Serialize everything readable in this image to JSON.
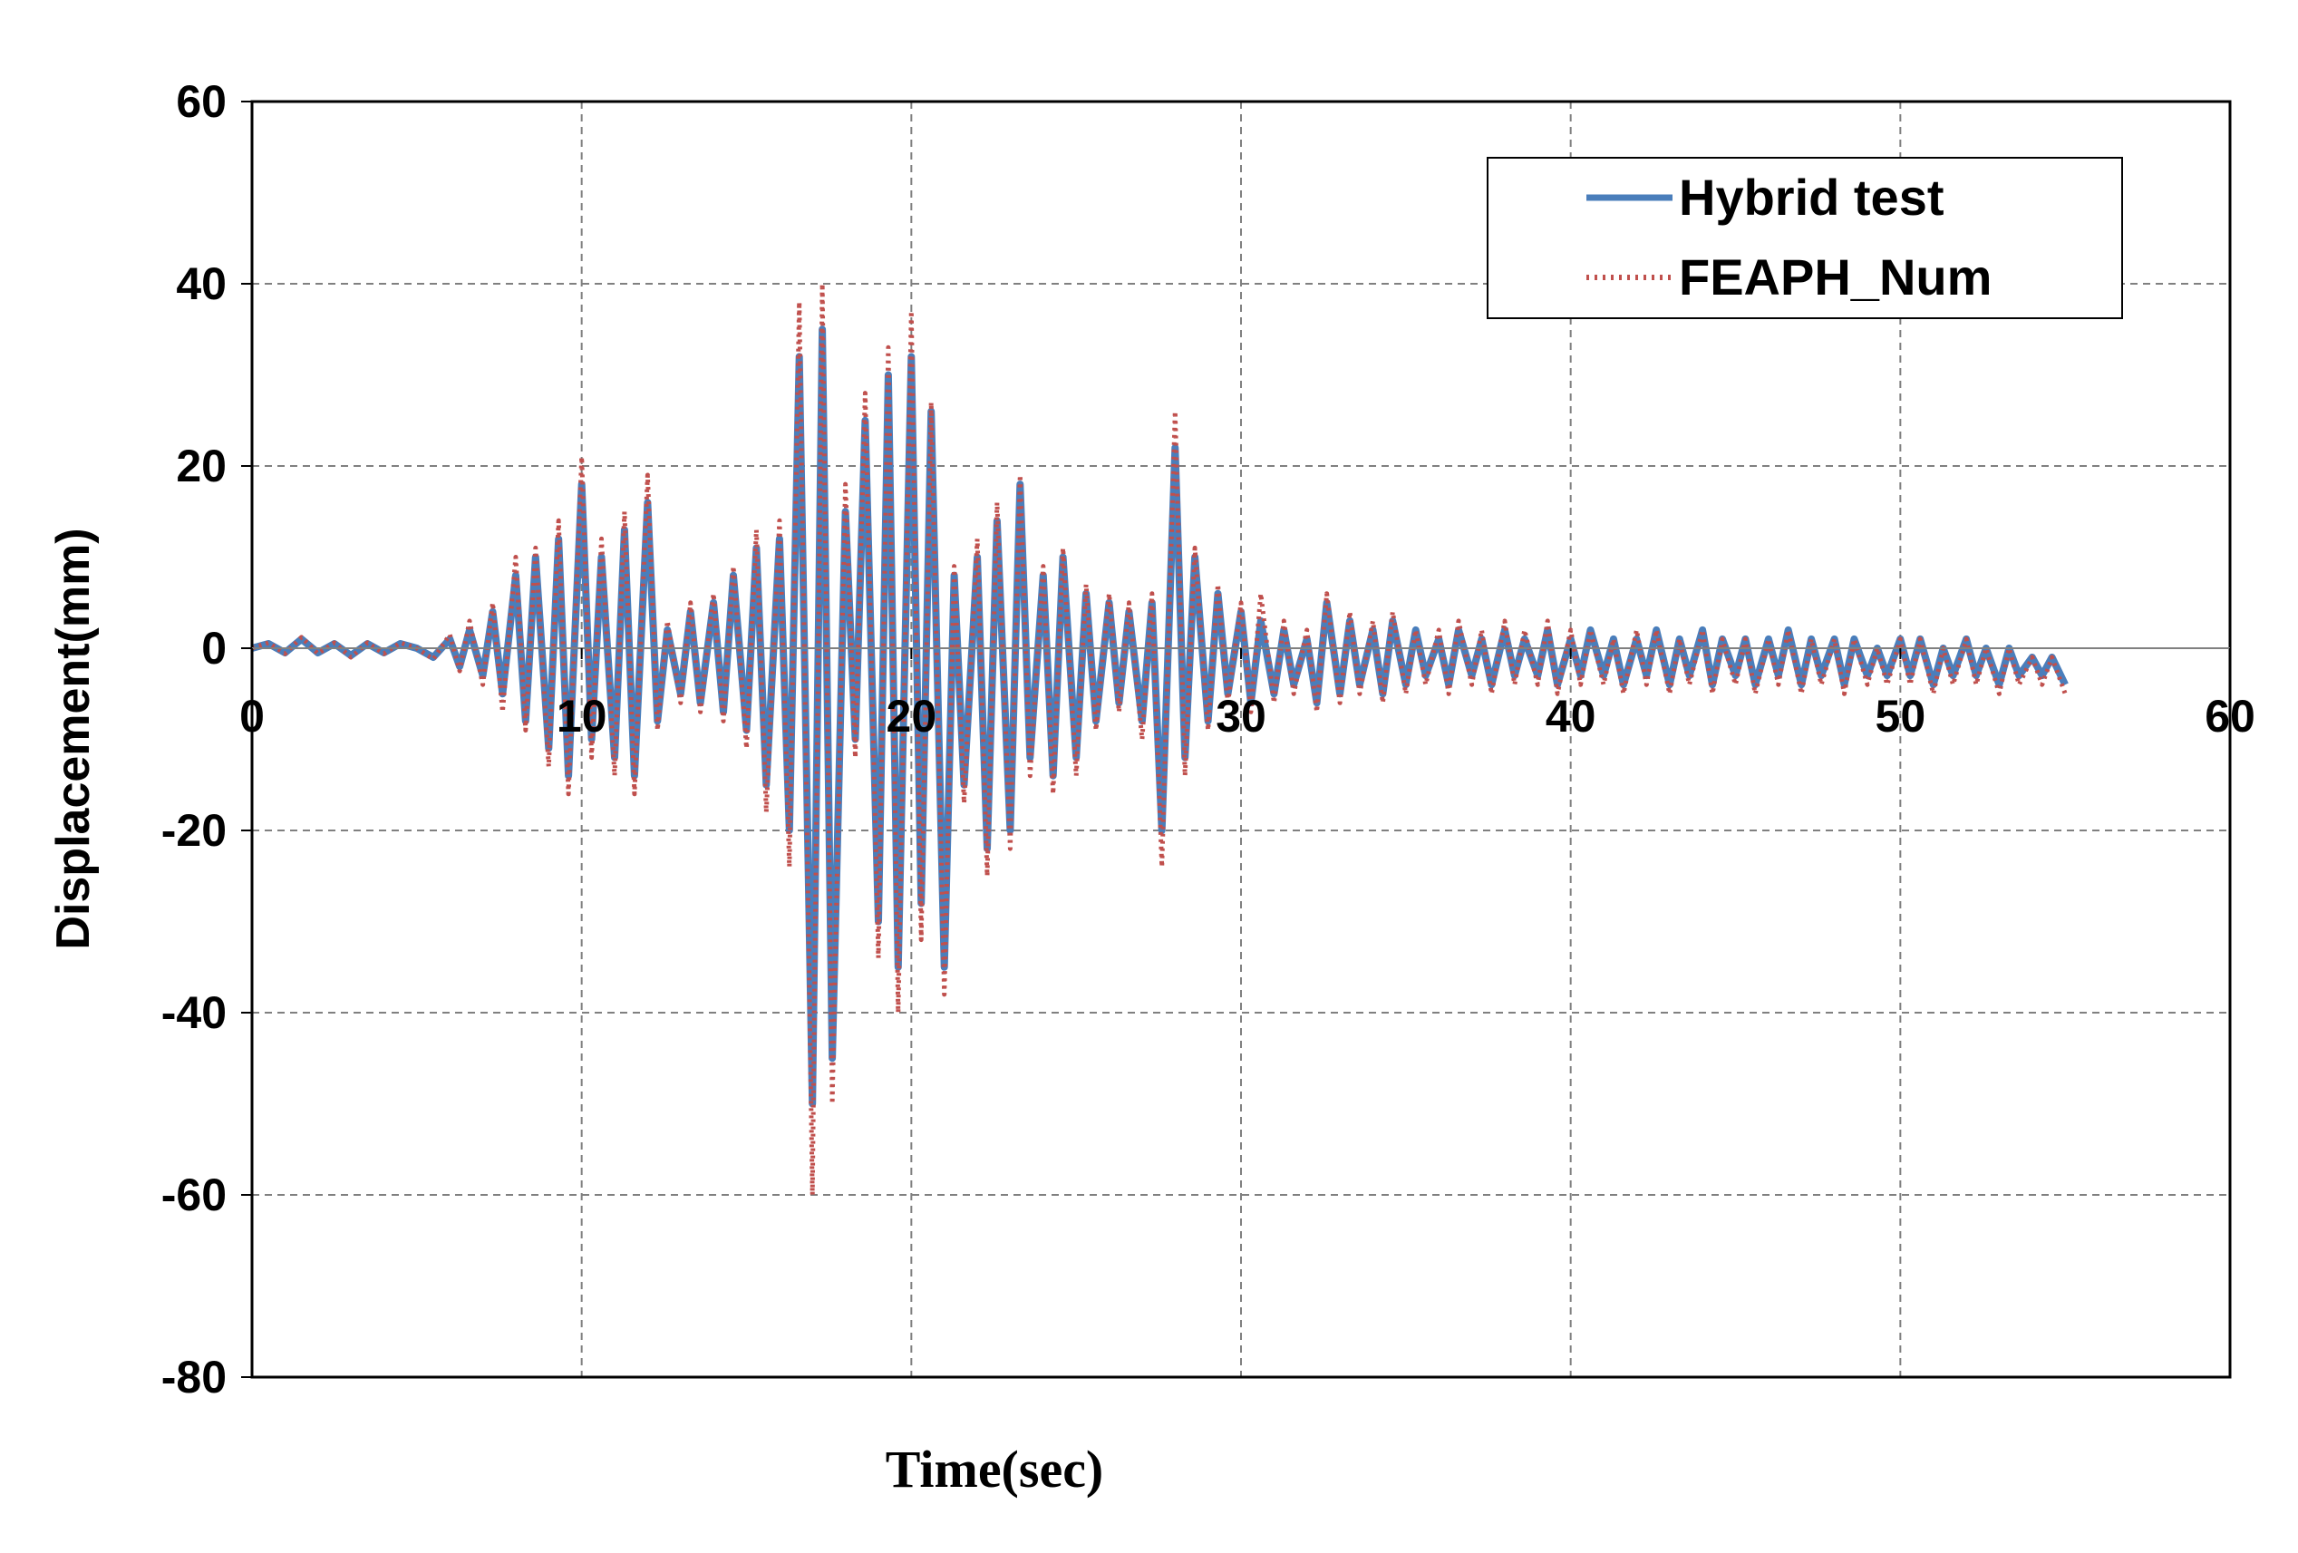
{
  "chart_data": {
    "type": "line",
    "title": "",
    "xlabel": "Time(sec)",
    "ylabel": "Displacement(mm)",
    "xlim": [
      0,
      60
    ],
    "ylim": [
      -80,
      60
    ],
    "x_ticks": [
      0,
      10,
      20,
      30,
      40,
      50,
      60
    ],
    "y_ticks": [
      -80,
      -60,
      -40,
      -20,
      0,
      20,
      40,
      60
    ],
    "grid": true,
    "legend_position": "top-right",
    "series": [
      {
        "name": "Hybrid test",
        "color": "#4a7ebb",
        "style": "solid",
        "x": [
          0,
          0.5,
          1,
          1.5,
          2,
          2.5,
          3,
          3.5,
          4,
          4.5,
          5,
          5.5,
          6,
          6.3,
          6.6,
          7,
          7.3,
          7.6,
          8,
          8.3,
          8.6,
          9,
          9.3,
          9.6,
          10,
          10.3,
          10.6,
          11,
          11.3,
          11.6,
          12,
          12.3,
          12.6,
          13,
          13.3,
          13.6,
          14,
          14.3,
          14.6,
          15,
          15.3,
          15.6,
          16,
          16.3,
          16.6,
          17,
          17.3,
          17.6,
          18,
          18.3,
          18.6,
          19,
          19.3,
          19.6,
          20,
          20.3,
          20.6,
          21,
          21.3,
          21.6,
          22,
          22.3,
          22.6,
          23,
          23.3,
          23.6,
          24,
          24.3,
          24.6,
          25,
          25.3,
          25.6,
          26,
          26.3,
          26.6,
          27,
          27.3,
          27.6,
          28,
          28.3,
          28.6,
          29,
          29.3,
          29.6,
          30,
          30.3,
          30.6,
          31,
          31.3,
          31.6,
          32,
          32.3,
          32.6,
          33,
          33.3,
          33.6,
          34,
          34.3,
          34.6,
          35,
          35.3,
          35.6,
          36,
          36.3,
          36.6,
          37,
          37.3,
          37.6,
          38,
          38.3,
          38.6,
          39,
          39.3,
          39.6,
          40,
          40.3,
          40.6,
          41,
          41.3,
          41.6,
          42,
          42.3,
          42.6,
          43,
          43.3,
          43.6,
          44,
          44.3,
          44.6,
          45,
          45.3,
          45.6,
          46,
          46.3,
          46.6,
          47,
          47.3,
          47.6,
          48,
          48.3,
          48.6,
          49,
          49.3,
          49.6,
          50,
          50.3,
          50.6,
          51,
          51.3,
          51.6,
          52,
          52.3,
          52.6,
          53,
          53.3,
          53.6,
          54,
          54.3,
          54.6,
          55
        ],
        "y": [
          0,
          0.5,
          -0.5,
          1,
          -0.5,
          0.5,
          -0.8,
          0.5,
          -0.5,
          0.5,
          0,
          -1,
          1,
          -2,
          2,
          -3,
          4,
          -5,
          8,
          -8,
          10,
          -11,
          12,
          -14,
          18,
          -10,
          10,
          -12,
          13,
          -14,
          16,
          -8,
          2,
          -5,
          4,
          -6,
          5,
          -7,
          8,
          -9,
          11,
          -15,
          12,
          -20,
          32,
          -50,
          35,
          -45,
          15,
          -10,
          25,
          -30,
          30,
          -35,
          32,
          -28,
          26,
          -35,
          8,
          -15,
          10,
          -22,
          14,
          -20,
          18,
          -12,
          8,
          -14,
          10,
          -12,
          6,
          -8,
          5,
          -6,
          4,
          -8,
          5,
          -20,
          22,
          -12,
          10,
          -8,
          6,
          -5,
          4,
          -6,
          3,
          -5,
          2,
          -4,
          1,
          -6,
          5,
          -5,
          3,
          -4,
          2,
          -5,
          3,
          -4,
          2,
          -3,
          1,
          -4,
          2,
          -3,
          1,
          -4,
          2,
          -3,
          1,
          -3,
          2,
          -4,
          1,
          -3,
          2,
          -3,
          1,
          -4,
          1,
          -3,
          2,
          -4,
          1,
          -3,
          2,
          -4,
          1,
          -3,
          1,
          -4,
          1,
          -3,
          2,
          -4,
          1,
          -3,
          1,
          -4,
          1,
          -3,
          0,
          -3,
          1,
          -3,
          1,
          -4,
          0,
          -3,
          1,
          -3,
          0,
          -4,
          0,
          -3,
          -1,
          -3,
          -1,
          -4
        ],
        "y_note": ""
      },
      {
        "name": "FEAPH_Num",
        "color": "#c0504d",
        "style": "dotted",
        "x": [
          0,
          0.5,
          1,
          1.5,
          2,
          2.5,
          3,
          3.5,
          4,
          4.5,
          5,
          5.5,
          6,
          6.3,
          6.6,
          7,
          7.3,
          7.6,
          8,
          8.3,
          8.6,
          9,
          9.3,
          9.6,
          10,
          10.3,
          10.6,
          11,
          11.3,
          11.6,
          12,
          12.3,
          12.6,
          13,
          13.3,
          13.6,
          14,
          14.3,
          14.6,
          15,
          15.3,
          15.6,
          16,
          16.3,
          16.6,
          17,
          17.3,
          17.6,
          18,
          18.3,
          18.6,
          19,
          19.3,
          19.6,
          20,
          20.3,
          20.6,
          21,
          21.3,
          21.6,
          22,
          22.3,
          22.6,
          23,
          23.3,
          23.6,
          24,
          24.3,
          24.6,
          25,
          25.3,
          25.6,
          26,
          26.3,
          26.6,
          27,
          27.3,
          27.6,
          28,
          28.3,
          28.6,
          29,
          29.3,
          29.6,
          30,
          30.3,
          30.6,
          31,
          31.3,
          31.6,
          32,
          32.3,
          32.6,
          33,
          33.3,
          33.6,
          34,
          34.3,
          34.6,
          35,
          35.3,
          35.6,
          36,
          36.3,
          36.6,
          37,
          37.3,
          37.6,
          38,
          38.3,
          38.6,
          39,
          39.3,
          39.6,
          40,
          40.3,
          40.6,
          41,
          41.3,
          41.6,
          42,
          42.3,
          42.6,
          43,
          43.3,
          43.6,
          44,
          44.3,
          44.6,
          45,
          45.3,
          45.6,
          46,
          46.3,
          46.6,
          47,
          47.3,
          47.6,
          48,
          48.3,
          48.6,
          49,
          49.3,
          49.6,
          50,
          50.3,
          50.6,
          51,
          51.3,
          51.6,
          52,
          52.3,
          52.6,
          53,
          53.3,
          53.6,
          54,
          54.3,
          54.6,
          55
        ],
        "y": [
          0,
          0.6,
          -0.6,
          1.2,
          -0.6,
          0.6,
          -1,
          0.6,
          -0.6,
          0.6,
          0,
          -1.2,
          1.5,
          -2.5,
          3,
          -4,
          5,
          -7,
          10,
          -9,
          11,
          -13,
          14,
          -16,
          21,
          -12,
          12,
          -14,
          15,
          -16,
          19,
          -9,
          3,
          -6,
          5,
          -7,
          6,
          -8,
          9,
          -11,
          13,
          -18,
          14,
          -24,
          38,
          -60,
          40,
          -50,
          18,
          -12,
          28,
          -34,
          33,
          -40,
          37,
          -32,
          27,
          -38,
          9,
          -17,
          12,
          -25,
          16,
          -22,
          19,
          -14,
          9,
          -16,
          11,
          -14,
          7,
          -9,
          6,
          -7,
          5,
          -10,
          6,
          -24,
          26,
          -14,
          11,
          -9,
          7,
          -6,
          5,
          -7,
          6,
          -6,
          3,
          -5,
          2,
          -7,
          6,
          -6,
          4,
          -5,
          3,
          -6,
          4,
          -5,
          2,
          -4,
          2,
          -5,
          3,
          -4,
          2,
          -5,
          3,
          -4,
          2,
          -4,
          3,
          -5,
          2,
          -4,
          2,
          -4,
          1,
          -5,
          2,
          -4,
          2,
          -5,
          1,
          -4,
          2,
          -5,
          1,
          -4,
          1,
          -5,
          1,
          -4,
          2,
          -5,
          1,
          -4,
          1,
          -5,
          1,
          -4,
          0,
          -4,
          1,
          -4,
          1,
          -5,
          0,
          -4,
          1,
          -4,
          0,
          -5,
          0,
          -4,
          -1,
          -4,
          -1,
          -5
        ],
        "y_note": ""
      }
    ]
  }
}
